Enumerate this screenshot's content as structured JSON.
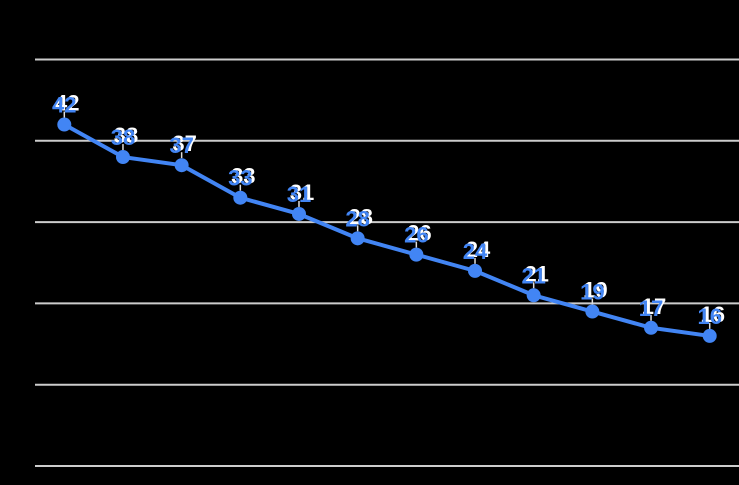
{
  "chart_data": {
    "type": "line",
    "title": "",
    "xlabel": "",
    "ylabel": "",
    "values": [
      42,
      38,
      37,
      33,
      31,
      28,
      26,
      24,
      21,
      19,
      17,
      16
    ],
    "point_labels": [
      "42",
      "38",
      "37",
      "33",
      "31",
      "28",
      "26",
      "24",
      "21",
      "19",
      "17",
      "16"
    ],
    "ylim": [
      0,
      50
    ],
    "grid": {
      "visible": true,
      "step": 10,
      "orientation": "horizontal"
    },
    "legend_position": "none",
    "axis_tick_labels_visible": false,
    "colors": {
      "background": "#000000",
      "series_line": "#4285f4",
      "data_point": "#4285f4",
      "gridline": "#cccccc",
      "label_text": "#4285f4",
      "label_halo": "#ffffff",
      "leader_line": "#dddddd"
    }
  }
}
